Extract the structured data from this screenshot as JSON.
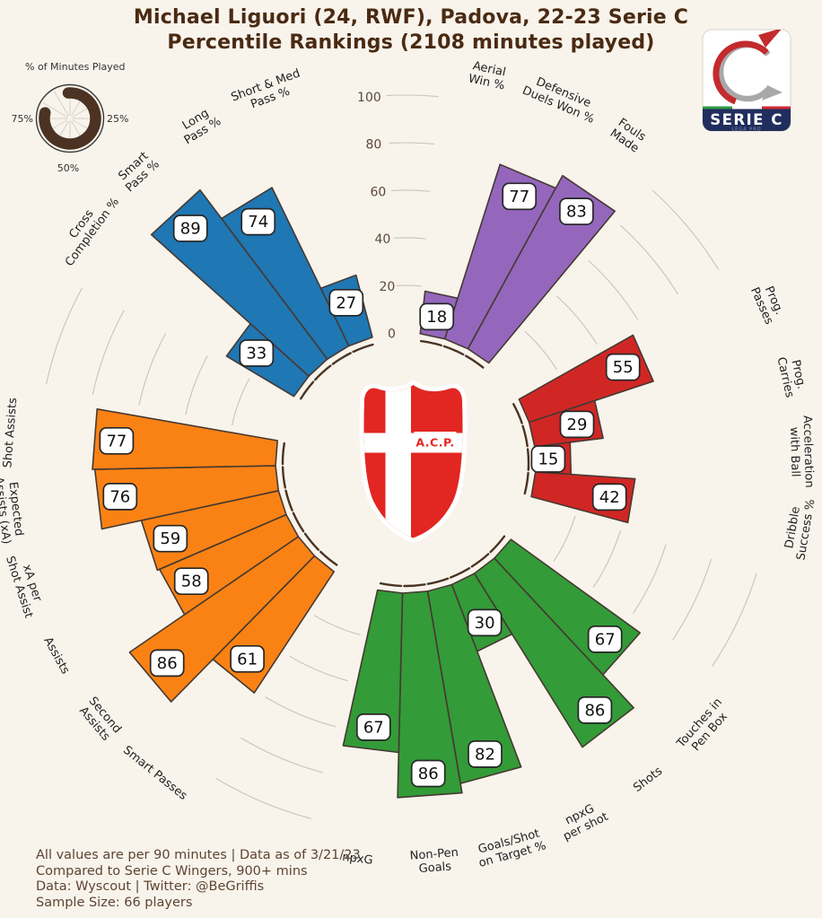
{
  "title": {
    "line1": "Michael Liguori (24, RWF), Padova, 22-23 Serie C",
    "line2": "Percentile Rankings (2108 minutes played)",
    "color": "#4a2a12"
  },
  "minutes_gauge": {
    "title": "% of Minutes Played",
    "left_label": "75%",
    "right_label": "25%",
    "bottom_label": "50%",
    "arc_start_deg": 356,
    "arc_end_deg": 283,
    "arc_color": "#4b3222",
    "spoke_color": "#d4d1c9",
    "ring_color": "#3a3a3a"
  },
  "league_badge": {
    "name": "SERIE C",
    "sub": "LEGA PRO",
    "navy": "#202e5e",
    "red": "#c32b2d",
    "silver": "#a8a8aa",
    "tricolor": [
      "#2e9a47",
      "#ffffff",
      "#cf2b31"
    ]
  },
  "club_crest": {
    "label": "A.C.P.",
    "red": "#e22621",
    "white": "#ffffff"
  },
  "footer": {
    "lines": [
      "All values are per 90 minutes | Data as of 3/21/23",
      "Compared to Serie C Wingers, 900+ mins",
      "Data: Wyscout | Twitter: @BeGriffis",
      "Sample Size: 66 players"
    ],
    "color": "#5f4432"
  },
  "chart_data": {
    "type": "bar",
    "variant": "radial-pizza-percentile",
    "title": "Percentile Rankings",
    "rlim": [
      0,
      100
    ],
    "ticks": [
      0,
      20,
      40,
      60,
      80,
      100
    ],
    "grid": true,
    "slice_width_deg": 11.09,
    "group_gap_deg": 20.92,
    "first_mid_angle_deg": 12.0,
    "groups": [
      {
        "color_name": "purple",
        "color": "#9467bd",
        "slices": [
          {
            "label": "Aerial Win %",
            "label_lines": [
              "Aerial",
              "Win %"
            ],
            "value": 18
          },
          {
            "label": "Defensive Duels Won %",
            "label_lines": [
              "Defensive",
              "Duels Won %"
            ],
            "value": 77
          },
          {
            "label": "Fouls Made",
            "label_lines": [
              "Fouls",
              "Made"
            ],
            "value": 83
          }
        ]
      },
      {
        "color_name": "red",
        "color": "#d02725",
        "slices": [
          {
            "label": "Prog. Passes",
            "label_lines": [
              "Prog.",
              "Passes"
            ],
            "value": 55
          },
          {
            "label": "Prog. Carries",
            "label_lines": [
              "Prog.",
              "Carries"
            ],
            "value": 29
          },
          {
            "label": "Acceleration with Ball",
            "label_lines": [
              "Acceleration",
              "with Ball"
            ],
            "value": 15
          },
          {
            "label": "Dribble Success %",
            "label_lines": [
              "Dribble",
              "Success %"
            ],
            "value": 42
          }
        ]
      },
      {
        "color_name": "green",
        "color": "#339b38",
        "slices": [
          {
            "label": "Touches in Pen Box",
            "label_lines": [
              "Touches in",
              "Pen Box"
            ],
            "value": 67
          },
          {
            "label": "Shots",
            "label_lines": [
              "Shots"
            ],
            "value": 86
          },
          {
            "label": "npxG per shot",
            "label_lines": [
              "npxG",
              "per shot"
            ],
            "value": 30
          },
          {
            "label": "Goals/Shot on Target %",
            "label_lines": [
              "Goals/Shot",
              "on Target %"
            ],
            "value": 82
          },
          {
            "label": "Non-Pen Goals",
            "label_lines": [
              "Non-Pen",
              "Goals"
            ],
            "value": 86
          },
          {
            "label": "npxG",
            "label_lines": [
              "npxG"
            ],
            "value": 67
          }
        ]
      },
      {
        "color_name": "orange",
        "color": "#fa8214",
        "slices": [
          {
            "label": "Smart Passes",
            "label_lines": [
              "Smart Passes"
            ],
            "value": 61
          },
          {
            "label": "Second Assists",
            "label_lines": [
              "Second",
              "Assists"
            ],
            "value": 86
          },
          {
            "label": "Assists",
            "label_lines": [
              "Assists"
            ],
            "value": 58
          },
          {
            "label": "xA per Shot Assist",
            "label_lines": [
              "xA per",
              "Shot Assist"
            ],
            "value": 59
          },
          {
            "label": "Expected Assists (xA)",
            "label_lines": [
              "Expected",
              "Assists (xA)"
            ],
            "value": 76
          },
          {
            "label": "Shot Assists",
            "label_lines": [
              "Shot Assists"
            ],
            "value": 77
          }
        ]
      },
      {
        "color_name": "blue",
        "color": "#1f77b4",
        "slices": [
          {
            "label": "Cross Completion %",
            "label_lines": [
              "Cross",
              "Completion %"
            ],
            "value": 33
          },
          {
            "label": "Smart Pass %",
            "label_lines": [
              "Smart",
              "Pass %"
            ],
            "value": 89
          },
          {
            "label": "Long Pass %",
            "label_lines": [
              "Long",
              "Pass %"
            ],
            "value": 74
          },
          {
            "label": "Short & Med Pass %",
            "label_lines": [
              "Short & Med",
              "Pass %"
            ],
            "value": 27
          }
        ]
      }
    ],
    "styling": {
      "grid_color": "#c8c4ba",
      "baseline_color": "#4a3423",
      "bar_stroke": "#463931",
      "tick_color": "#5d4839",
      "label_color": "#1f1f1f",
      "value_box_fill": "#ffffff",
      "value_box_stroke": "#262626",
      "value_text_color": "#111111"
    }
  }
}
